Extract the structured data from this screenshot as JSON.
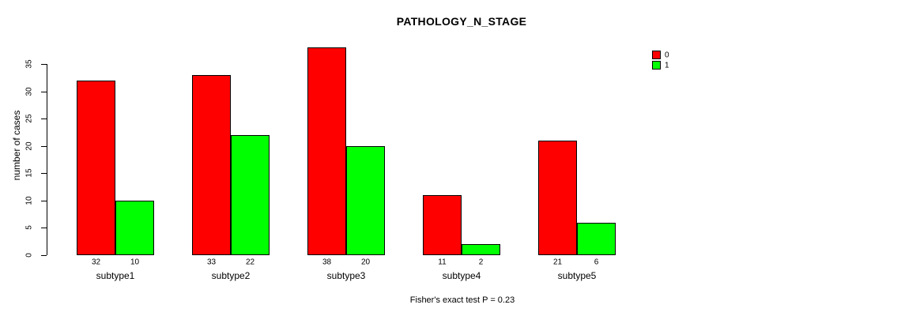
{
  "title": "PATHOLOGY_N_STAGE",
  "caption": "Fisher's exact test P = 0.23",
  "chart_data": {
    "type": "bar",
    "title": "PATHOLOGY_N_STAGE",
    "xlabel": "",
    "ylabel": "number of cases",
    "categories": [
      "subtype1",
      "subtype2",
      "subtype3",
      "subtype4",
      "subtype5"
    ],
    "series": [
      {
        "name": "0",
        "color": "#ff0000",
        "values": [
          32,
          33,
          38,
          11,
          21
        ]
      },
      {
        "name": "1",
        "color": "#00ff00",
        "values": [
          10,
          22,
          20,
          2,
          6
        ]
      }
    ],
    "bar_value_labels": [
      [
        "32",
        "10"
      ],
      [
        "33",
        "22"
      ],
      [
        "38",
        "20"
      ],
      [
        "11",
        "2"
      ],
      [
        "21",
        "6"
      ]
    ],
    "ylim": [
      0,
      35
    ],
    "ytick_step": 5,
    "yticks": [
      0,
      5,
      10,
      15,
      20,
      25,
      30,
      35
    ],
    "grid": false,
    "legend_position": "top-right",
    "annotation": "Fisher's exact test P = 0.23"
  }
}
